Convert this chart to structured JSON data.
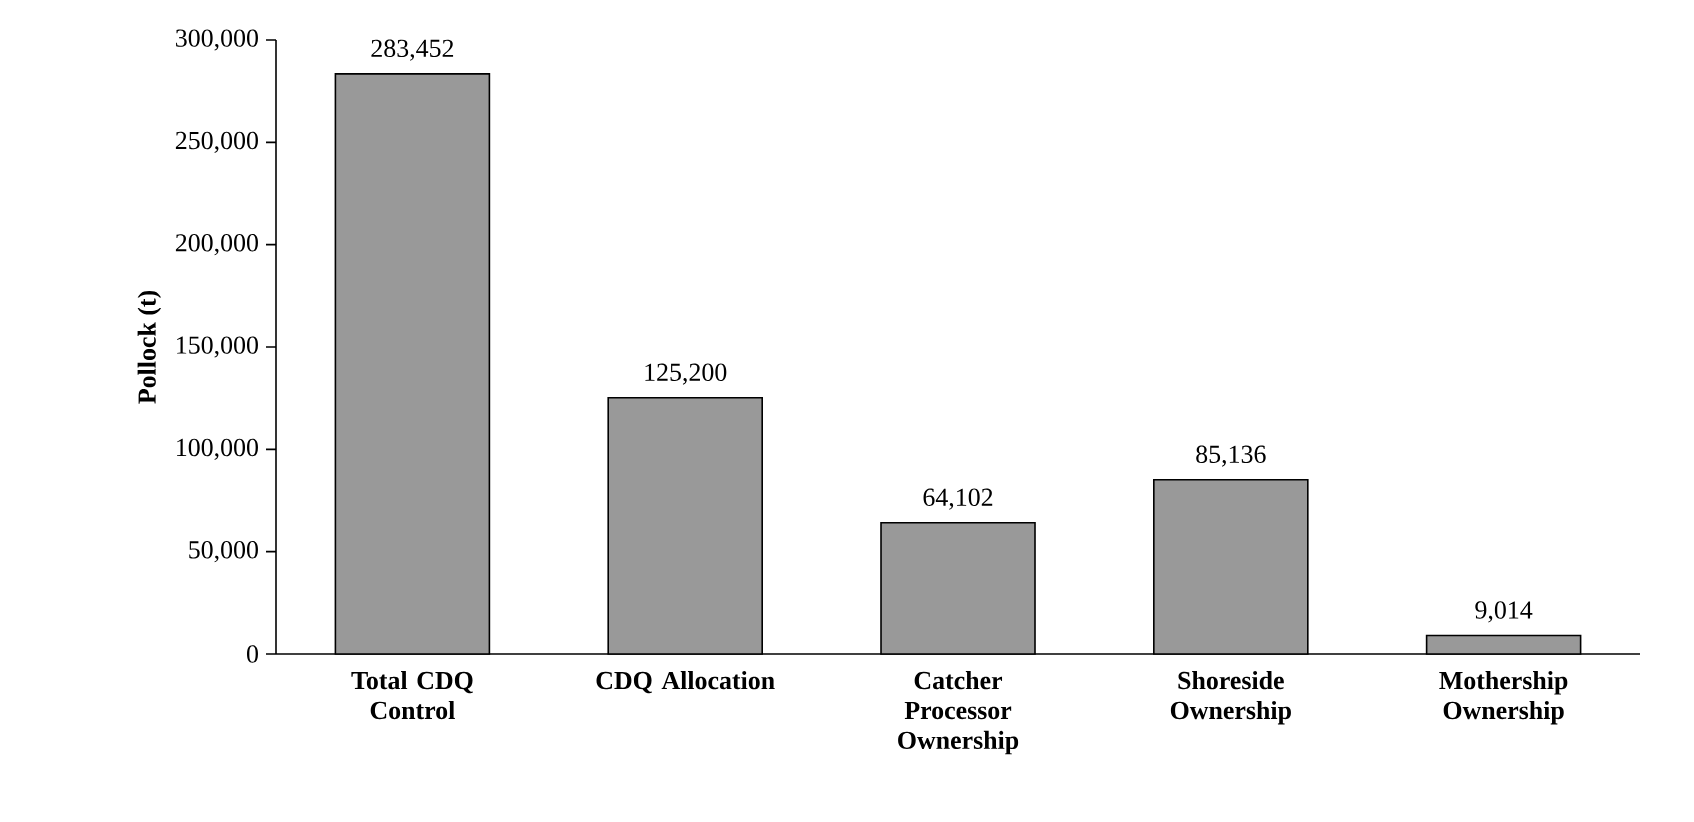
{
  "chart_data": {
    "type": "bar",
    "ylabel": "Pollock (t)",
    "categories": [
      "Total CDQ Control",
      "CDQ Allocation",
      "Catcher Processor Ownership",
      "Shoreside Ownership",
      "Mothership Ownership"
    ],
    "values": [
      283452,
      125200,
      64102,
      85136,
      9014
    ],
    "value_labels": [
      "283,452",
      "125,200",
      "64,102",
      "85,136",
      "9,014"
    ],
    "color": "#999999",
    "ylim": [
      0,
      300000
    ],
    "yticks": [
      {
        "value": 0,
        "label": "0"
      },
      {
        "value": 50000,
        "label": "50,000"
      },
      {
        "value": 100000,
        "label": "100,000"
      },
      {
        "value": 150000,
        "label": "150,000"
      },
      {
        "value": 200000,
        "label": "200,000"
      },
      {
        "value": 250000,
        "label": "250,000"
      },
      {
        "value": 300000,
        "label": "300,000"
      }
    ],
    "grid": false
  }
}
